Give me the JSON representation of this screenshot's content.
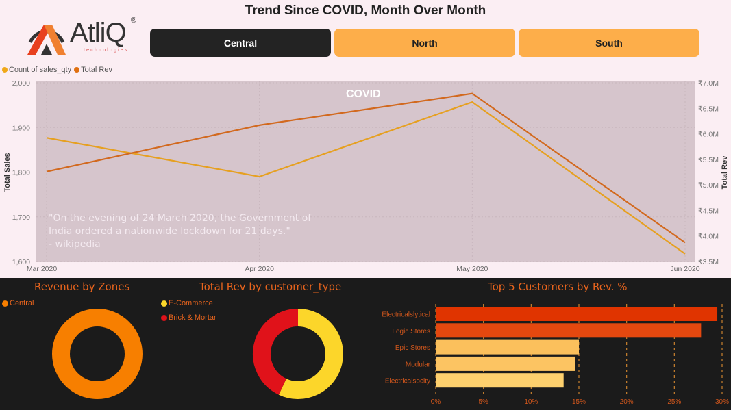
{
  "header": {
    "title": "Trend Since COVID, Month Over Month",
    "logo": {
      "name": "AtliQ",
      "registered": "®",
      "tagline": "technologies"
    }
  },
  "zone_buttons": [
    {
      "label": "Central",
      "active": true
    },
    {
      "label": "North",
      "active": false
    },
    {
      "label": "South",
      "active": false
    }
  ],
  "colors": {
    "sales_qty": "#e6a020",
    "total_rev": "#d2691e",
    "plot_bg": "#d6c5cc",
    "central": "#f77f00",
    "ecommerce": "#fcd62a",
    "brick_mortar": "#e0121a",
    "accent_title": "#e8641d"
  },
  "trend": {
    "legend": [
      "Count of sales_qty",
      "Total Rev"
    ],
    "covid_label": "COVID",
    "quote_lines": [
      "\"On the evening of 24 March 2020, the Government of",
      "India ordered a nationwide lockdown for 21 days.\"",
      "- wikipedia"
    ]
  },
  "chart_data": [
    {
      "type": "line",
      "title": "Trend Since COVID, Month Over Month",
      "x": [
        "Mar 2020",
        "Apr 2020",
        "May 2020",
        "Jun 2020"
      ],
      "ylabel": "Total Sales",
      "y2label": "Total Rev",
      "ylim": [
        1600,
        2000
      ],
      "yticks": [
        "1,600",
        "1,700",
        "1,800",
        "1,900",
        "2,000"
      ],
      "y2lim": [
        3.5,
        7.0
      ],
      "y2ticks": [
        "₹3.5M",
        "₹4.0M",
        "₹4.5M",
        "₹5.0M",
        "₹5.5M",
        "₹6.0M",
        "₹6.5M",
        "₹7.0M"
      ],
      "legend_position": "top-left",
      "series": [
        {
          "name": "Count of sales_qty",
          "axis": "left",
          "values": [
            1877,
            1790,
            1957,
            1617
          ]
        },
        {
          "name": "Total Rev",
          "axis": "right",
          "unit": "₹M",
          "values": [
            5.26,
            6.17,
            6.79,
            3.87
          ]
        }
      ]
    },
    {
      "type": "pie",
      "title": "Revenue by Zones",
      "donut": true,
      "legend_position": "top-left",
      "labels": [
        "Central"
      ],
      "values": [
        100
      ]
    },
    {
      "type": "pie",
      "title": "Total Rev by customer_type",
      "donut": true,
      "legend_position": "top-left",
      "labels": [
        "E-Commerce",
        "Brick & Mortar"
      ],
      "values": [
        57,
        43
      ]
    },
    {
      "type": "bar",
      "orientation": "horizontal",
      "title": "Top 5 Customers by Rev. %",
      "categories": [
        "Electricalslytical",
        "Logic Stores",
        "Epic Stores",
        "Modular",
        "Electricalsocity"
      ],
      "values": [
        29.5,
        27.8,
        15.0,
        14.6,
        13.4
      ],
      "bar_colors": [
        "#e03400",
        "#e5480f",
        "#fbc05c",
        "#fcc462",
        "#fdd06e"
      ],
      "xlim": [
        0,
        30
      ],
      "xticks": [
        "0%",
        "5%",
        "10%",
        "15%",
        "20%",
        "25%",
        "30%"
      ],
      "grid": true
    }
  ]
}
